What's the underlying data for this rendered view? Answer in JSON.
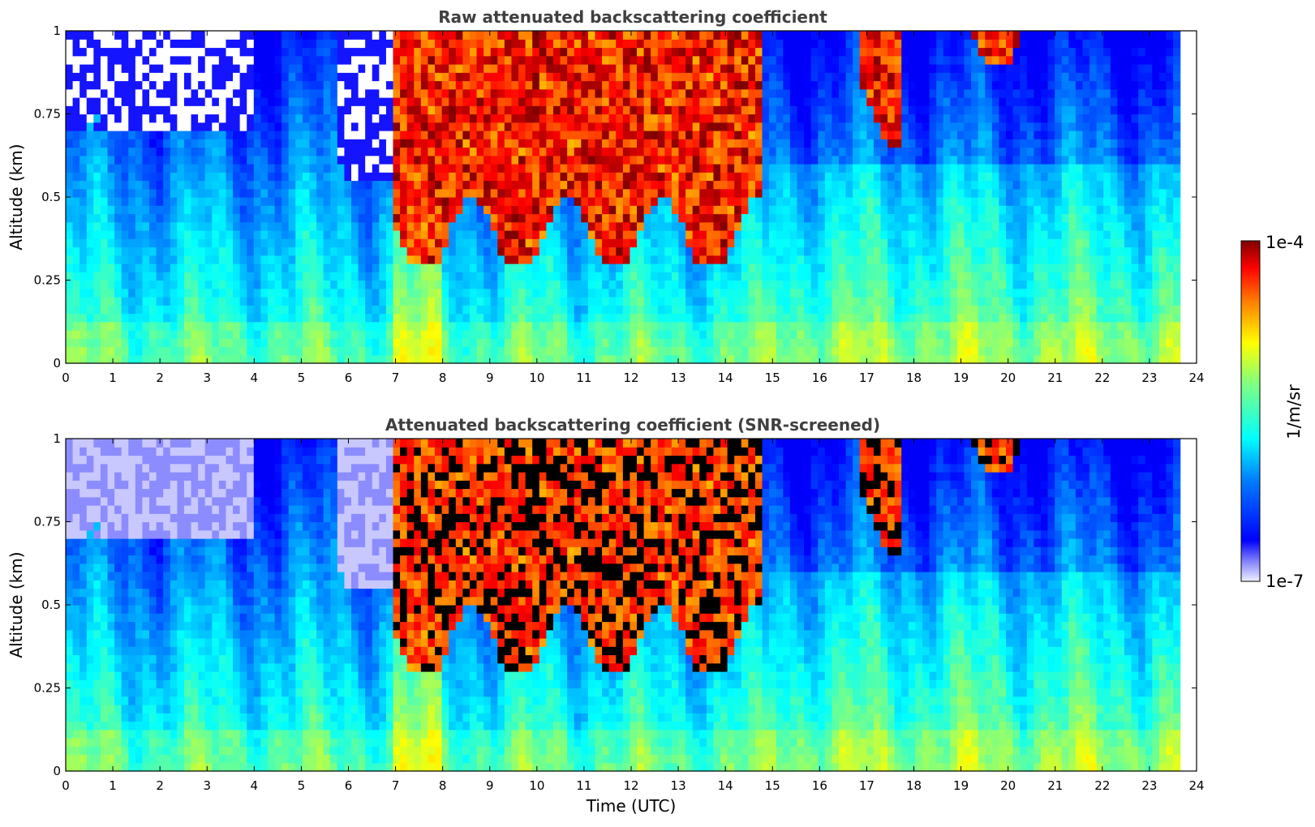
{
  "chart_data": [
    {
      "type": "heatmap",
      "title": "Raw attenuated backscattering coefficient",
      "xlabel": "",
      "ylabel": "Altitude (km)",
      "xlim": [
        0,
        24
      ],
      "ylim": [
        0,
        1
      ],
      "x_ticks": [
        "0",
        "1",
        "2",
        "3",
        "4",
        "5",
        "6",
        "7",
        "8",
        "9",
        "10",
        "11",
        "12",
        "13",
        "14",
        "15",
        "16",
        "17",
        "18",
        "19",
        "20",
        "21",
        "22",
        "23",
        "24"
      ],
      "y_ticks": [
        "0",
        "0.25",
        "0.5",
        "0.75",
        "1"
      ],
      "data_end_time_utc": 23.65,
      "grid": true,
      "features": [
        {
          "kind": "aerosol layer",
          "time_utc": [
            7.0,
            14.8
          ],
          "altitude_km": [
            0.3,
            1.0
          ],
          "level": "high"
        },
        {
          "kind": "plume",
          "time_utc": [
            16.8,
            17.7
          ],
          "altitude_km": [
            0.65,
            1.0
          ],
          "level": "high"
        },
        {
          "kind": "cloud base",
          "time_utc": [
            18.4,
            20.4
          ],
          "altitude_km": [
            0.9,
            1.0
          ],
          "level": "high"
        },
        {
          "kind": "noise",
          "time_utc": [
            0.0,
            4.0
          ],
          "altitude_km": [
            0.7,
            1.0
          ],
          "level": "low"
        },
        {
          "kind": "noise",
          "time_utc": [
            5.8,
            8.2
          ],
          "altitude_km": [
            0.55,
            1.0
          ],
          "level": "low"
        }
      ]
    },
    {
      "type": "heatmap",
      "title": "Attenuated backscattering coefficient (SNR-screened)",
      "xlabel": "Time (UTC)",
      "ylabel": "Altitude (km)",
      "xlim": [
        0,
        24
      ],
      "ylim": [
        0,
        1
      ],
      "x_ticks": [
        "0",
        "1",
        "2",
        "3",
        "4",
        "5",
        "6",
        "7",
        "8",
        "9",
        "10",
        "11",
        "12",
        "13",
        "14",
        "15",
        "16",
        "17",
        "18",
        "19",
        "20",
        "21",
        "22",
        "23",
        "24"
      ],
      "y_ticks": [
        "0",
        "0.25",
        "0.5",
        "0.75",
        "1"
      ],
      "data_end_time_utc": 23.65,
      "grid": true
    }
  ],
  "colorbar": {
    "max_label": "1e-4",
    "min_label": "1e-7",
    "unit_label": "1/m/sr",
    "colormap": "jet",
    "scale": "log"
  }
}
